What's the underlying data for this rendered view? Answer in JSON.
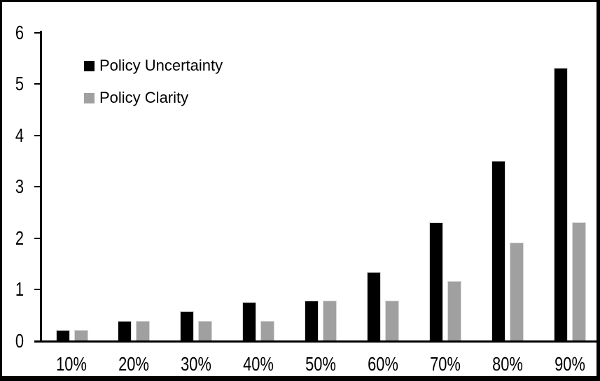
{
  "frame": {
    "background": "#ffffff",
    "border_color": "#000000"
  },
  "legend": {
    "position": "top-left",
    "items": [
      {
        "label": "Policy Uncertainty",
        "color": "#000000",
        "icon": "black-square-icon"
      },
      {
        "label": "Policy Clarity",
        "color": "#a0a0a0",
        "icon": "gray-square-icon"
      }
    ]
  },
  "chart_data": {
    "type": "bar",
    "title": "",
    "xlabel": "",
    "ylabel": "",
    "categories": [
      "10%",
      "20%",
      "30%",
      "40%",
      "50%",
      "60%",
      "70%",
      "80%",
      "90%"
    ],
    "series": [
      {
        "name": "Policy Uncertainty",
        "color": "#000000",
        "values": [
          0.2,
          0.38,
          0.57,
          0.75,
          0.77,
          1.33,
          2.3,
          3.5,
          5.3
        ]
      },
      {
        "name": "Policy Clarity",
        "color": "#a0a0a0",
        "values": [
          0.2,
          0.38,
          0.38,
          0.38,
          0.77,
          0.77,
          1.15,
          1.9,
          2.3
        ]
      }
    ],
    "ylim": [
      0,
      6
    ],
    "yticks": [
      0,
      1,
      2,
      3,
      4,
      5,
      6
    ],
    "grid": false,
    "bar_border_color": "#d9d9d9",
    "axis_color": "#000000",
    "legend_position": "top-left"
  }
}
